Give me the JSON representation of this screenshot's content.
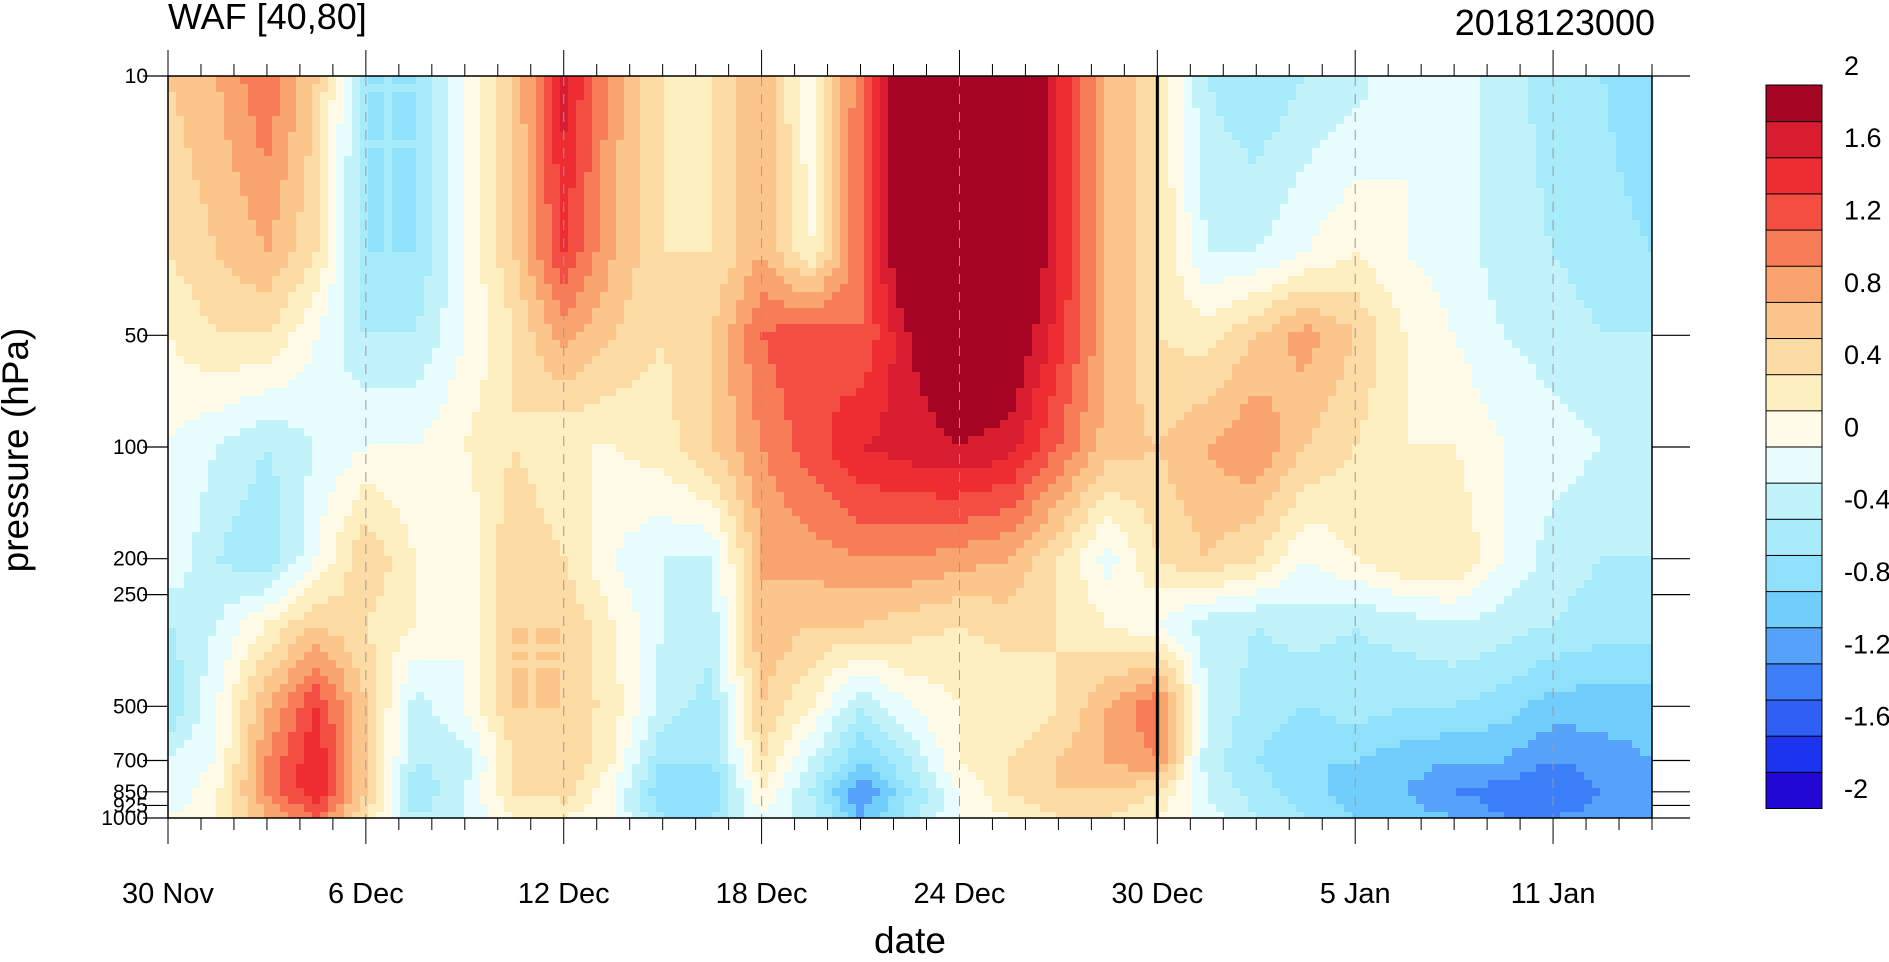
{
  "chart_data": {
    "type": "heatmap",
    "subtype": "filled-contour",
    "title": "WAF [40,80]",
    "subtitle_right": "2018123000",
    "xlabel": "date",
    "ylabel": "pressure (hPa)",
    "x_tick_labels": [
      "30 Nov",
      "6 Dec",
      "12 Dec",
      "18 Dec",
      "24 Dec",
      "30 Dec",
      "5 Jan",
      "11 Jan"
    ],
    "x_tick_days": [
      0,
      6,
      12,
      18,
      24,
      30,
      36,
      42
    ],
    "x_range_days": [
      0,
      45
    ],
    "x_start_label": "30 Nov",
    "y_tick_labels": [
      "10",
      "50",
      "100",
      "200",
      "250",
      "500",
      "700",
      "850",
      "925",
      "1000"
    ],
    "y_tick_values": [
      10,
      50,
      100,
      200,
      250,
      500,
      700,
      850,
      925,
      1000
    ],
    "y_range": [
      1000,
      10
    ],
    "y_scale": "log",
    "y_inverted": true,
    "vertical_line_at": "30 Dec",
    "colorbar": {
      "labels": [
        "2",
        "1.6",
        "1.2",
        "0.8",
        "0.4",
        "0",
        "-0.4",
        "-0.8",
        "-1.2",
        "-1.6",
        "-2"
      ],
      "levels": [
        -2.2,
        -2.0,
        -1.8,
        -1.6,
        -1.4,
        -1.2,
        -1.0,
        -0.8,
        -0.6,
        -0.4,
        -0.2,
        0,
        0.2,
        0.4,
        0.6,
        0.8,
        1.0,
        1.2,
        1.4,
        1.6,
        1.8,
        2.0,
        2.2
      ],
      "colors": [
        "#2108d4",
        "#1d34ee",
        "#2f5ff5",
        "#3c7ff8",
        "#56a2fa",
        "#71cdfb",
        "#8fe0fb",
        "#a8ebfb",
        "#c2f3fa",
        "#e6fcfd",
        "#fffbe6",
        "#fdefc0",
        "#fcdca4",
        "#fcc58b",
        "#f9a46e",
        "#f77c58",
        "#f34e41",
        "#ee2d33",
        "#d71d2f",
        "#a50522"
      ]
    },
    "data_grid": {
      "x_days": [
        0,
        1.5,
        3,
        4.5,
        6,
        7.5,
        9,
        10.5,
        12,
        13.5,
        15,
        16.5,
        18,
        19.5,
        21,
        22.5,
        24,
        25.5,
        27,
        28.5,
        30,
        31.5,
        33,
        34.5,
        36,
        37.5,
        39,
        40.5,
        42,
        43.5,
        45
      ],
      "pressure_hPa": [
        10,
        30,
        50,
        100,
        200,
        300,
        500,
        700,
        850,
        1000
      ],
      "values": [
        [
          0.6,
          0.8,
          1.2,
          0.6,
          -0.6,
          -0.6,
          0.0,
          0.6,
          1.7,
          0.9,
          0.4,
          0.4,
          0.8,
          0.0,
          1.2,
          2.4,
          2.6,
          2.6,
          1.6,
          0.8,
          0.4,
          -0.4,
          -0.6,
          -0.4,
          -0.3,
          0.0,
          -0.1,
          -0.3,
          -0.5,
          -0.6,
          -0.8
        ],
        [
          0.4,
          0.6,
          0.8,
          0.4,
          -0.6,
          -0.6,
          0.0,
          0.6,
          1.4,
          0.8,
          0.4,
          0.4,
          0.8,
          0.2,
          1.2,
          2.2,
          2.4,
          2.4,
          1.6,
          0.8,
          0.4,
          -0.2,
          -0.2,
          0.0,
          0.2,
          0.0,
          -0.1,
          -0.3,
          -0.4,
          -0.5,
          -0.6
        ],
        [
          0.2,
          0.4,
          0.4,
          0.0,
          -0.4,
          -0.4,
          0.0,
          0.4,
          0.9,
          0.6,
          0.4,
          0.6,
          1.2,
          1.4,
          1.2,
          1.8,
          2.1,
          2.1,
          1.5,
          0.8,
          0.4,
          0.3,
          0.6,
          0.9,
          0.6,
          0.2,
          0.0,
          -0.2,
          -0.3,
          -0.4,
          -0.4
        ],
        [
          0.0,
          -0.2,
          -0.4,
          -0.2,
          0.0,
          0.0,
          0.2,
          0.4,
          0.2,
          0.2,
          0.3,
          0.6,
          1.0,
          1.3,
          1.6,
          1.7,
          1.8,
          1.7,
          1.2,
          0.7,
          0.6,
          0.8,
          1.0,
          0.6,
          0.4,
          0.2,
          0.2,
          0.0,
          -0.1,
          -0.2,
          -0.2
        ],
        [
          0.0,
          -0.4,
          -0.6,
          0.0,
          0.6,
          0.2,
          0.0,
          0.6,
          0.4,
          0.0,
          -0.2,
          -0.2,
          0.8,
          0.9,
          1.0,
          1.0,
          0.9,
          0.8,
          0.4,
          -0.1,
          0.4,
          0.6,
          0.4,
          0.0,
          0.2,
          0.4,
          0.4,
          0.0,
          -0.3,
          -0.4,
          -0.4
        ],
        [
          -0.4,
          -0.2,
          0.2,
          0.6,
          0.4,
          0.2,
          0.0,
          0.6,
          0.6,
          0.2,
          -0.2,
          -0.3,
          0.8,
          0.6,
          0.6,
          0.5,
          0.4,
          0.5,
          0.4,
          0.2,
          0.0,
          -0.3,
          -0.4,
          -0.3,
          -0.4,
          -0.3,
          -0.2,
          -0.3,
          -0.4,
          -0.5,
          -0.5
        ],
        [
          -0.6,
          0.0,
          0.8,
          1.4,
          0.6,
          -0.3,
          0.0,
          0.6,
          0.6,
          0.3,
          -0.3,
          -0.5,
          0.6,
          0.2,
          -0.4,
          0.0,
          0.2,
          0.2,
          0.4,
          0.8,
          1.2,
          -0.2,
          -0.5,
          -0.6,
          -0.5,
          -0.6,
          -0.6,
          -0.7,
          -0.9,
          -0.9,
          -0.9
        ],
        [
          -0.2,
          0.0,
          1.0,
          1.6,
          0.6,
          -0.4,
          -0.3,
          0.4,
          0.6,
          0.2,
          -0.6,
          -0.6,
          0.4,
          -0.2,
          -0.8,
          -0.4,
          0.2,
          0.4,
          0.6,
          0.8,
          1.0,
          -0.3,
          -0.6,
          -0.8,
          -0.8,
          -0.9,
          -1.0,
          -1.0,
          -1.2,
          -1.1,
          -1.0
        ],
        [
          -0.2,
          0.2,
          1.0,
          1.6,
          0.6,
          -0.6,
          -0.2,
          0.4,
          0.5,
          0.0,
          -0.8,
          -0.8,
          0.2,
          -0.4,
          -1.2,
          -0.6,
          0.0,
          0.4,
          0.6,
          0.6,
          0.4,
          -0.2,
          -0.5,
          -0.7,
          -0.9,
          -1.0,
          -1.2,
          -1.3,
          -1.4,
          -1.2,
          -1.0
        ],
        [
          0.0,
          0.2,
          0.8,
          1.2,
          0.4,
          -0.4,
          -0.2,
          0.2,
          0.2,
          0.0,
          -0.6,
          -0.6,
          0.0,
          -0.3,
          -1.0,
          -0.5,
          0.0,
          0.2,
          0.4,
          0.4,
          0.2,
          -0.1,
          -0.4,
          -0.6,
          -0.8,
          -0.9,
          -1.0,
          -1.2,
          -1.2,
          -1.1,
          -1.0
        ]
      ]
    }
  }
}
